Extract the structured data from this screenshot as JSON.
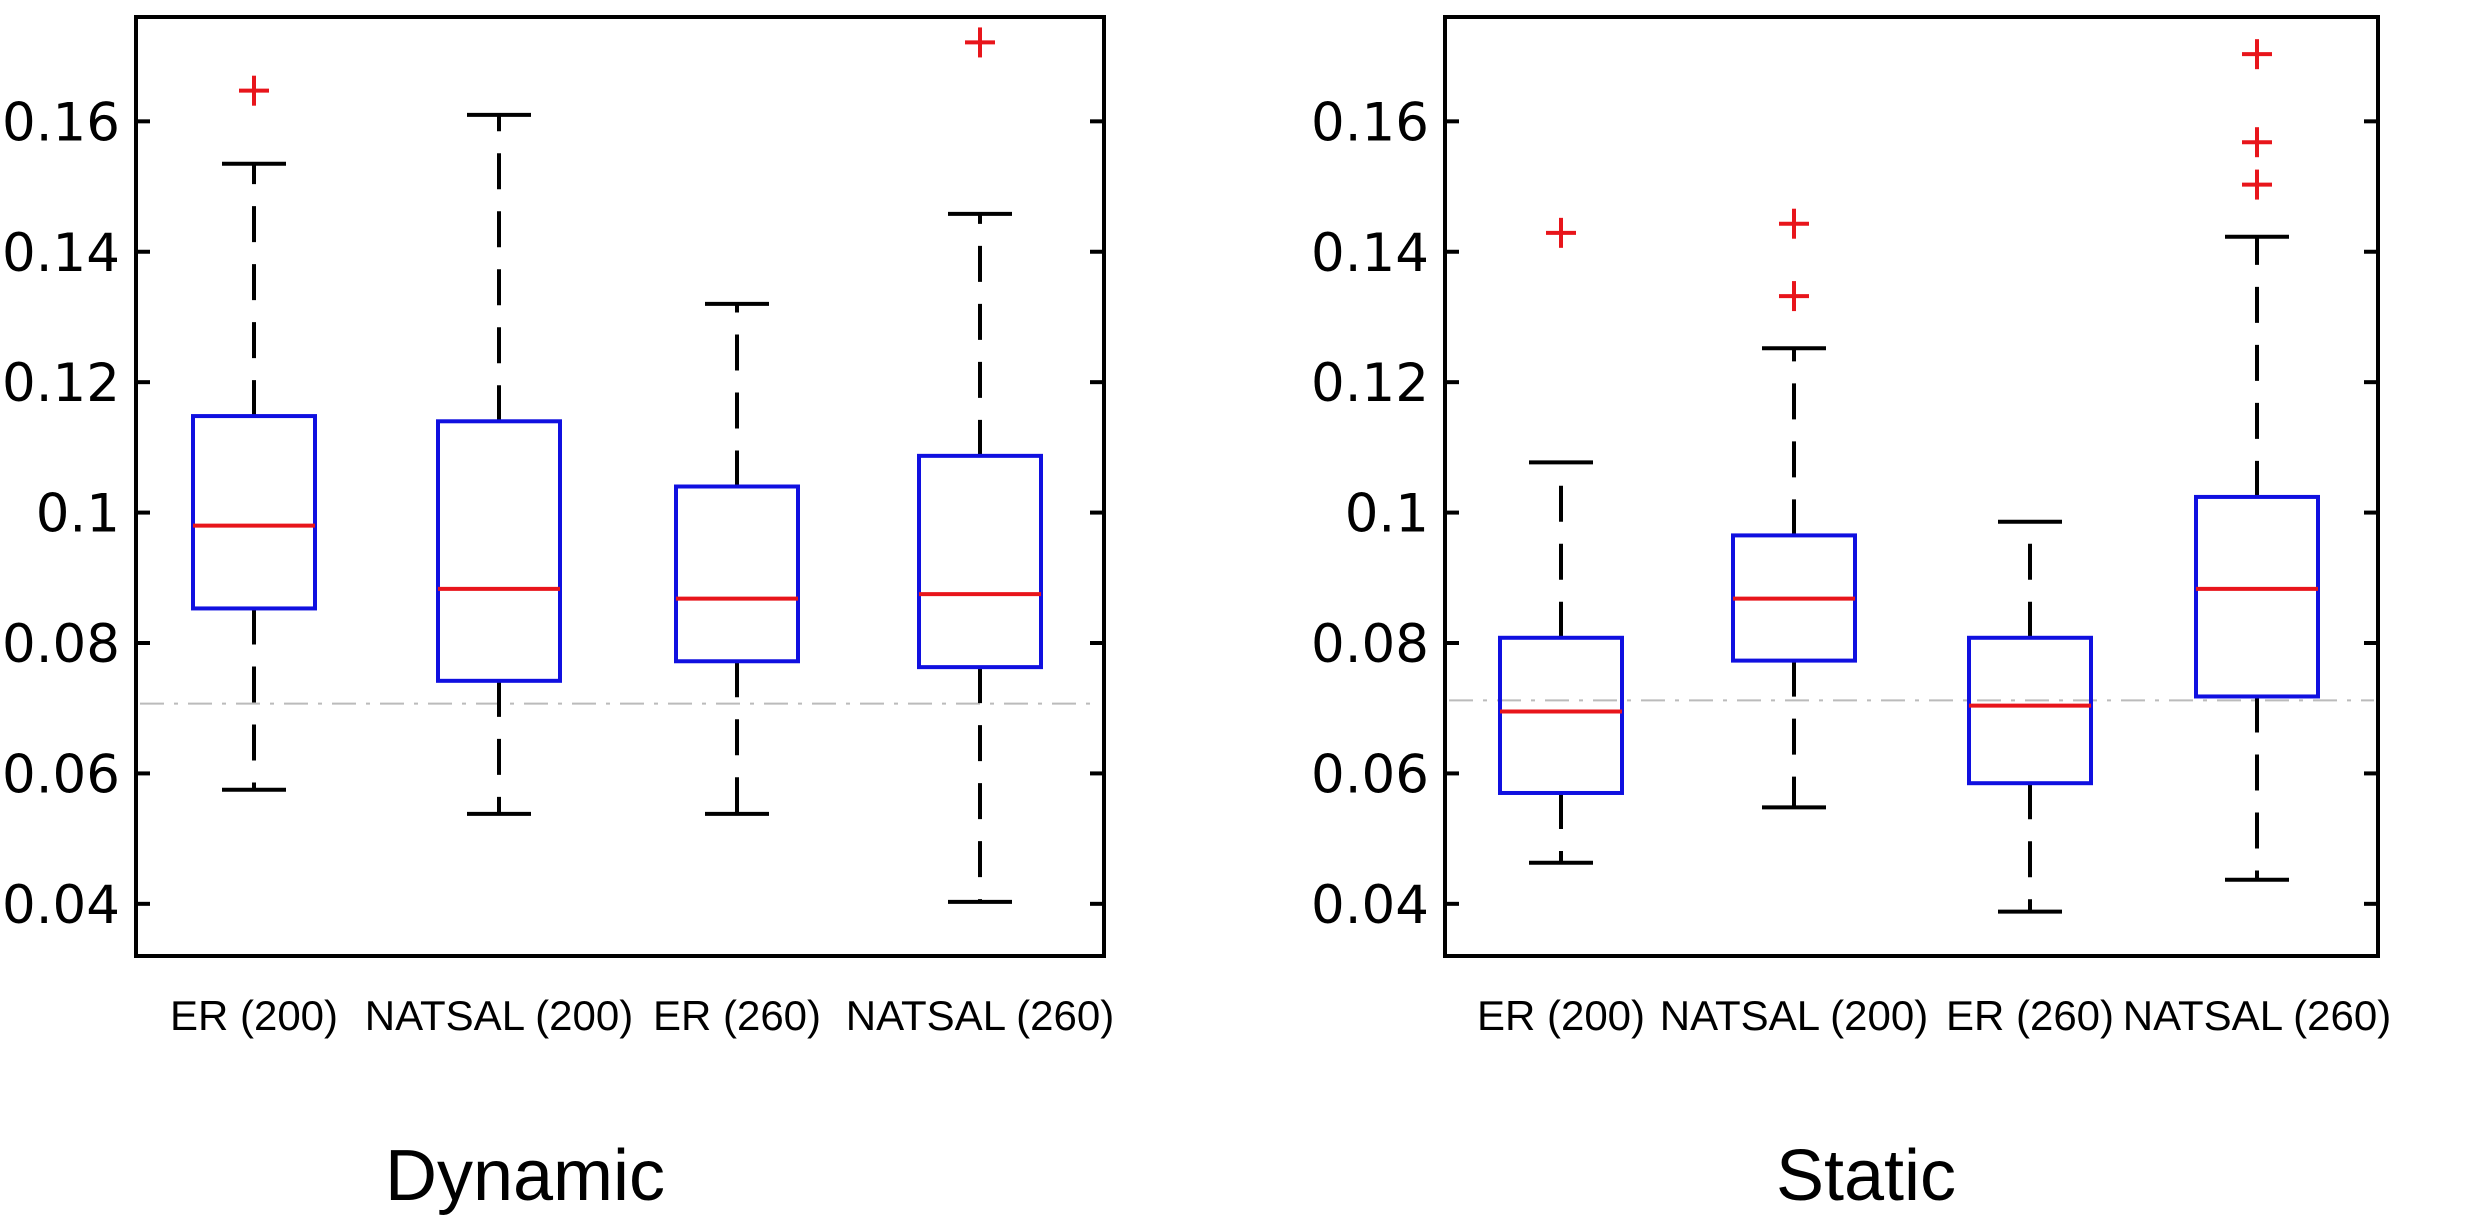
{
  "colors": {
    "box": "#1010e0",
    "median": "#e8151b",
    "whisker": "#000000",
    "outlier": "#e8151b",
    "reference_line": "#bbbbbb",
    "axes": "#000000",
    "background": "#ffffff"
  },
  "chart_data": [
    {
      "type": "boxplot",
      "title": "Dynamic",
      "xlabel": "",
      "ylabel": "",
      "categories": [
        "ER (200)",
        "NATSAL (200)",
        "ER (260)",
        "NATSAL (260)"
      ],
      "ylim": [
        0.032,
        0.176
      ],
      "yticks": [
        0.04,
        0.06,
        0.08,
        0.1,
        0.12,
        0.14,
        0.16
      ],
      "ytick_labels": [
        "0.04",
        "0.06",
        "0.08",
        "0.1",
        "0.12",
        "0.14",
        "0.16"
      ],
      "reference_line": 0.0707,
      "grid": false,
      "boxes": [
        {
          "label": "ER (200)",
          "whisker_low": 0.0575,
          "q1": 0.0853,
          "median": 0.098,
          "q3": 0.1148,
          "whisker_high": 0.1535,
          "outliers": [
            0.1647
          ]
        },
        {
          "label": "NATSAL (200)",
          "whisker_low": 0.0538,
          "q1": 0.0742,
          "median": 0.0883,
          "q3": 0.114,
          "whisker_high": 0.161,
          "outliers": []
        },
        {
          "label": "ER (260)",
          "whisker_low": 0.0538,
          "q1": 0.0772,
          "median": 0.0868,
          "q3": 0.104,
          "whisker_high": 0.132,
          "outliers": []
        },
        {
          "label": "NATSAL (260)",
          "whisker_low": 0.0403,
          "q1": 0.0763,
          "median": 0.0875,
          "q3": 0.1087,
          "whisker_high": 0.1458,
          "outliers": [
            0.1721
          ]
        }
      ]
    },
    {
      "type": "boxplot",
      "title": "Static",
      "xlabel": "",
      "ylabel": "",
      "categories": [
        "ER (200)",
        "NATSAL (200)",
        "ER (260)",
        "NATSAL (260)"
      ],
      "ylim": [
        0.032,
        0.176
      ],
      "yticks": [
        0.04,
        0.06,
        0.08,
        0.1,
        0.12,
        0.14,
        0.16
      ],
      "ytick_labels": [
        "0.04",
        "0.06",
        "0.08",
        "0.1",
        "0.12",
        "0.14",
        "0.16"
      ],
      "reference_line": 0.0712,
      "grid": false,
      "boxes": [
        {
          "label": "ER (200)",
          "whisker_low": 0.0463,
          "q1": 0.057,
          "median": 0.0695,
          "q3": 0.0808,
          "whisker_high": 0.1077,
          "outliers": [
            0.1429
          ]
        },
        {
          "label": "NATSAL (200)",
          "whisker_low": 0.0548,
          "q1": 0.0773,
          "median": 0.0868,
          "q3": 0.0965,
          "whisker_high": 0.1252,
          "outliers": [
            0.1332,
            0.1443
          ]
        },
        {
          "label": "ER (260)",
          "whisker_low": 0.0388,
          "q1": 0.0585,
          "median": 0.0704,
          "q3": 0.0808,
          "whisker_high": 0.0986,
          "outliers": []
        },
        {
          "label": "NATSAL (260)",
          "whisker_low": 0.0437,
          "q1": 0.0718,
          "median": 0.0883,
          "q3": 0.1024,
          "whisker_high": 0.1423,
          "outliers": [
            0.1503,
            0.1568,
            0.1703
          ]
        }
      ]
    }
  ]
}
